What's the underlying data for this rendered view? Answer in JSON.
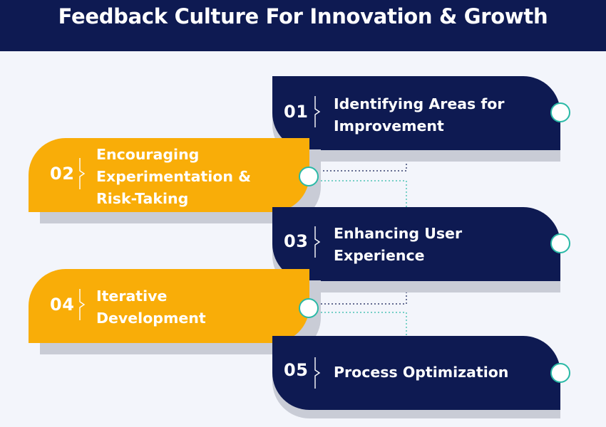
{
  "title": "Feedback Culture For Innovation & Growth",
  "colors": {
    "header": "#0e1a52",
    "navy": "#0e1a52",
    "gold": "#f9ad08",
    "teal": "#2ab9a6",
    "background": "#f3f5fb"
  },
  "steps": [
    {
      "number": "01",
      "label": "Identifying Areas for\nImprovement",
      "style": "navy"
    },
    {
      "number": "02",
      "label": "Encouraging\nExperimentation &\nRisk-Taking",
      "style": "gold"
    },
    {
      "number": "03",
      "label": "Enhancing User\nExperience",
      "style": "navy"
    },
    {
      "number": "04",
      "label": "Iterative\nDevelopment",
      "style": "gold"
    },
    {
      "number": "05",
      "label": "Process Optimization",
      "style": "navy"
    }
  ]
}
